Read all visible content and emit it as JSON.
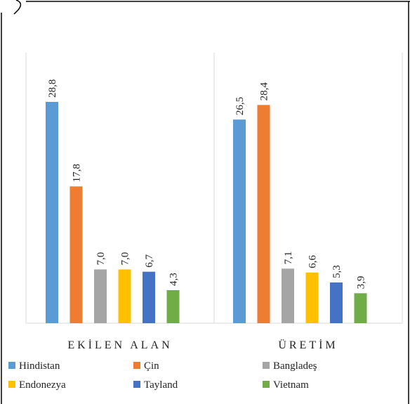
{
  "chart_data": {
    "type": "bar",
    "categories": [
      "EKİLEN ALAN",
      "ÜRETİM"
    ],
    "series": [
      {
        "name": "Hindistan",
        "values": [
          28.8,
          26.5
        ],
        "labels": [
          "28,8",
          "26,5"
        ],
        "color": "#5b9bd5"
      },
      {
        "name": "Çin",
        "values": [
          17.8,
          28.4
        ],
        "labels": [
          "17,8",
          "28,4"
        ],
        "color": "#ed7d31"
      },
      {
        "name": "Bangladeş",
        "values": [
          7.0,
          7.1
        ],
        "labels": [
          "7,0",
          "7,1"
        ],
        "color": "#a5a5a5"
      },
      {
        "name": "Endonezya",
        "values": [
          7.0,
          6.6
        ],
        "labels": [
          "7,0",
          "6,6"
        ],
        "color": "#ffc000"
      },
      {
        "name": "Tayland",
        "values": [
          6.7,
          5.3
        ],
        "labels": [
          "6,7",
          "5,3"
        ],
        "color": "#4472c4"
      },
      {
        "name": "Vietnam",
        "values": [
          4.3,
          3.9
        ],
        "labels": [
          "4,3",
          "3,9"
        ],
        "color": "#70ad47"
      }
    ],
    "title": "",
    "xlabel": "",
    "ylabel": "",
    "ylim": [
      0,
      30
    ],
    "grid": false,
    "legend": "bottom",
    "data_labels": "rotated-vertical"
  }
}
